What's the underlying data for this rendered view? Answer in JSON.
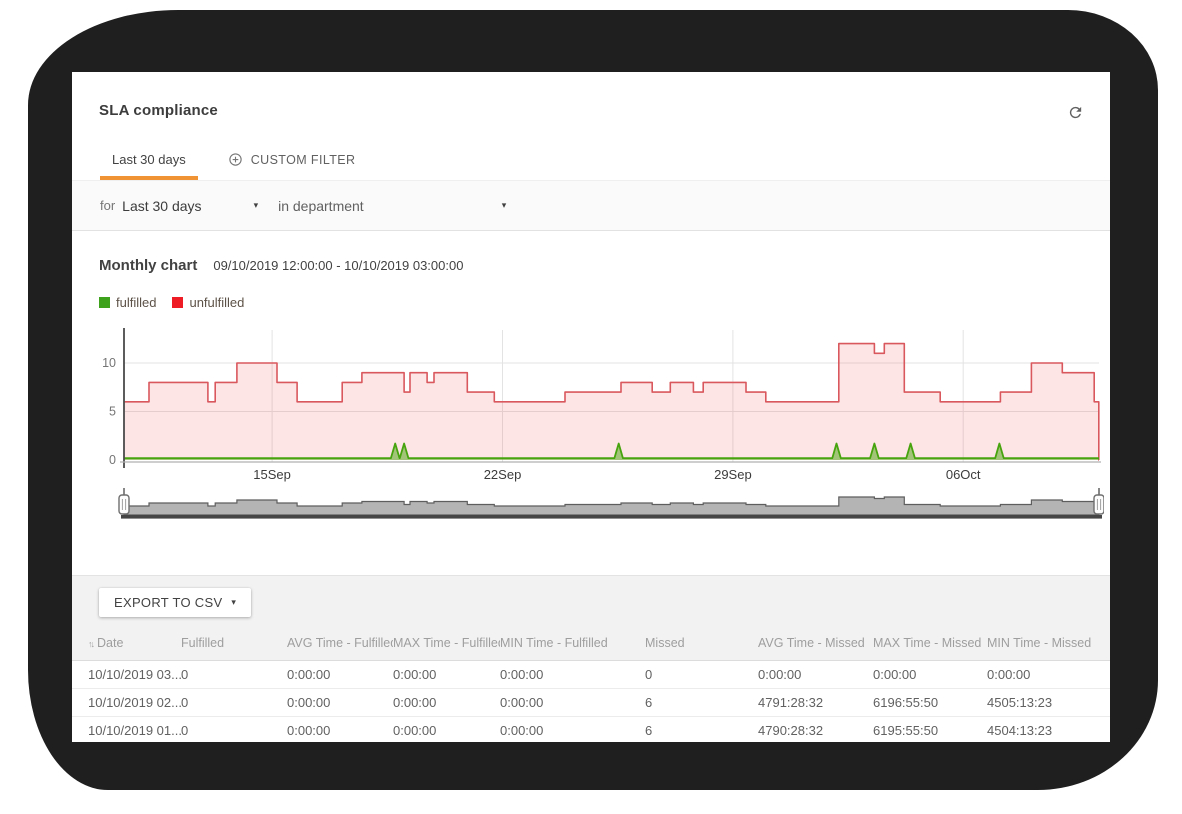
{
  "card": {
    "title": "SLA compliance"
  },
  "icons": {
    "caret": "▾",
    "sort": "↑↓"
  },
  "colors": {
    "accent_orange": "#ef9334",
    "blob_background": "#1f1f1f",
    "section_background": "#f2f2f2",
    "unfulfilled_line": "#d9585e",
    "unfulfilled_fill": "#f2575c",
    "fulfilled_line": "#47a30e",
    "legend_green": "#3fa21c",
    "legend_red": "#ee1c25",
    "brush_fill": "#b4b4b4",
    "brush_stroke": "#5e5e5e",
    "brush_track": "#454545"
  },
  "tabs": [
    {
      "label": "Last 30 days",
      "active": true
    },
    {
      "label": "CUSTOM FILTER",
      "active": false
    }
  ],
  "filters": {
    "for_label": "for",
    "for_value": "Last 30 days",
    "in_value": "in department"
  },
  "chart_section": {
    "title": "Monthly chart",
    "range": "09/10/2019 12:00:00 - 10/10/2019 03:00:00",
    "legend": [
      {
        "label": "fulfilled",
        "color": "#3fa21c"
      },
      {
        "label": "unfulfilled",
        "color": "#ee1c25"
      }
    ]
  },
  "chart_data": {
    "type": "area",
    "title": "Monthly chart",
    "x_start": "09/10/2019 12:00:00",
    "x_end": "10/10/2019 03:00:00",
    "x_span_days": 29.625,
    "x_ticks": [
      {
        "day": 4.5,
        "label": "15Sep"
      },
      {
        "day": 11.5,
        "label": "22Sep"
      },
      {
        "day": 18.5,
        "label": "29Sep"
      },
      {
        "day": 25.5,
        "label": "06Oct"
      }
    ],
    "y_ticks": [
      0,
      5,
      10
    ],
    "ylim": [
      0,
      14
    ],
    "grid": true,
    "legend_position": "top-left",
    "series": [
      {
        "name": "unfulfilled",
        "type": "step-area",
        "color": "#d9585e",
        "fill": "#f2575c",
        "fill_opacity": 0.16,
        "steps_day_value": [
          [
            0,
            6
          ],
          [
            0.76,
            8
          ],
          [
            2.55,
            6
          ],
          [
            2.77,
            8
          ],
          [
            3.43,
            10
          ],
          [
            4.65,
            8
          ],
          [
            5.26,
            6
          ],
          [
            6.63,
            8
          ],
          [
            7.23,
            9
          ],
          [
            8.51,
            7
          ],
          [
            8.69,
            9
          ],
          [
            9.21,
            8
          ],
          [
            9.42,
            9
          ],
          [
            10.43,
            7
          ],
          [
            11.25,
            6
          ],
          [
            13.4,
            7
          ],
          [
            15.1,
            8
          ],
          [
            16.05,
            7
          ],
          [
            16.6,
            8
          ],
          [
            17.3,
            7
          ],
          [
            17.6,
            8
          ],
          [
            18.9,
            7
          ],
          [
            19.5,
            6
          ],
          [
            21.72,
            12
          ],
          [
            22.8,
            11
          ],
          [
            23.1,
            12
          ],
          [
            23.71,
            7
          ],
          [
            24.8,
            6
          ],
          [
            26.63,
            7
          ],
          [
            27.57,
            10
          ],
          [
            28.51,
            9
          ],
          [
            29.48,
            6
          ],
          [
            29.62,
            0
          ]
        ]
      },
      {
        "name": "fulfilled",
        "type": "spike-line",
        "color": "#47a30e",
        "baseline": 0.2,
        "spike_height": 1.7,
        "spike_days": [
          8.24,
          8.51,
          15.03,
          21.65,
          22.8,
          23.9,
          26.6
        ]
      }
    ],
    "brush": {
      "has_handles": true
    }
  },
  "table": {
    "export_label": "EXPORT TO CSV",
    "columns": [
      "Date",
      "Fulfilled",
      "AVG Time - Fulfilled",
      "MAX Time - Fulfilled",
      "MIN Time - Fulfilled",
      "Missed",
      "AVG Time - Missed",
      "MAX Time - Missed",
      "MIN Time - Missed"
    ],
    "rows": [
      [
        "10/10/2019 03...",
        "0",
        "0:00:00",
        "0:00:00",
        "0:00:00",
        "0",
        "0:00:00",
        "0:00:00",
        "0:00:00"
      ],
      [
        "10/10/2019 02...",
        "0",
        "0:00:00",
        "0:00:00",
        "0:00:00",
        "6",
        "4791:28:32",
        "6196:55:50",
        "4505:13:23"
      ],
      [
        "10/10/2019 01...",
        "0",
        "0:00:00",
        "0:00:00",
        "0:00:00",
        "6",
        "4790:28:32",
        "6195:55:50",
        "4504:13:23"
      ]
    ]
  }
}
